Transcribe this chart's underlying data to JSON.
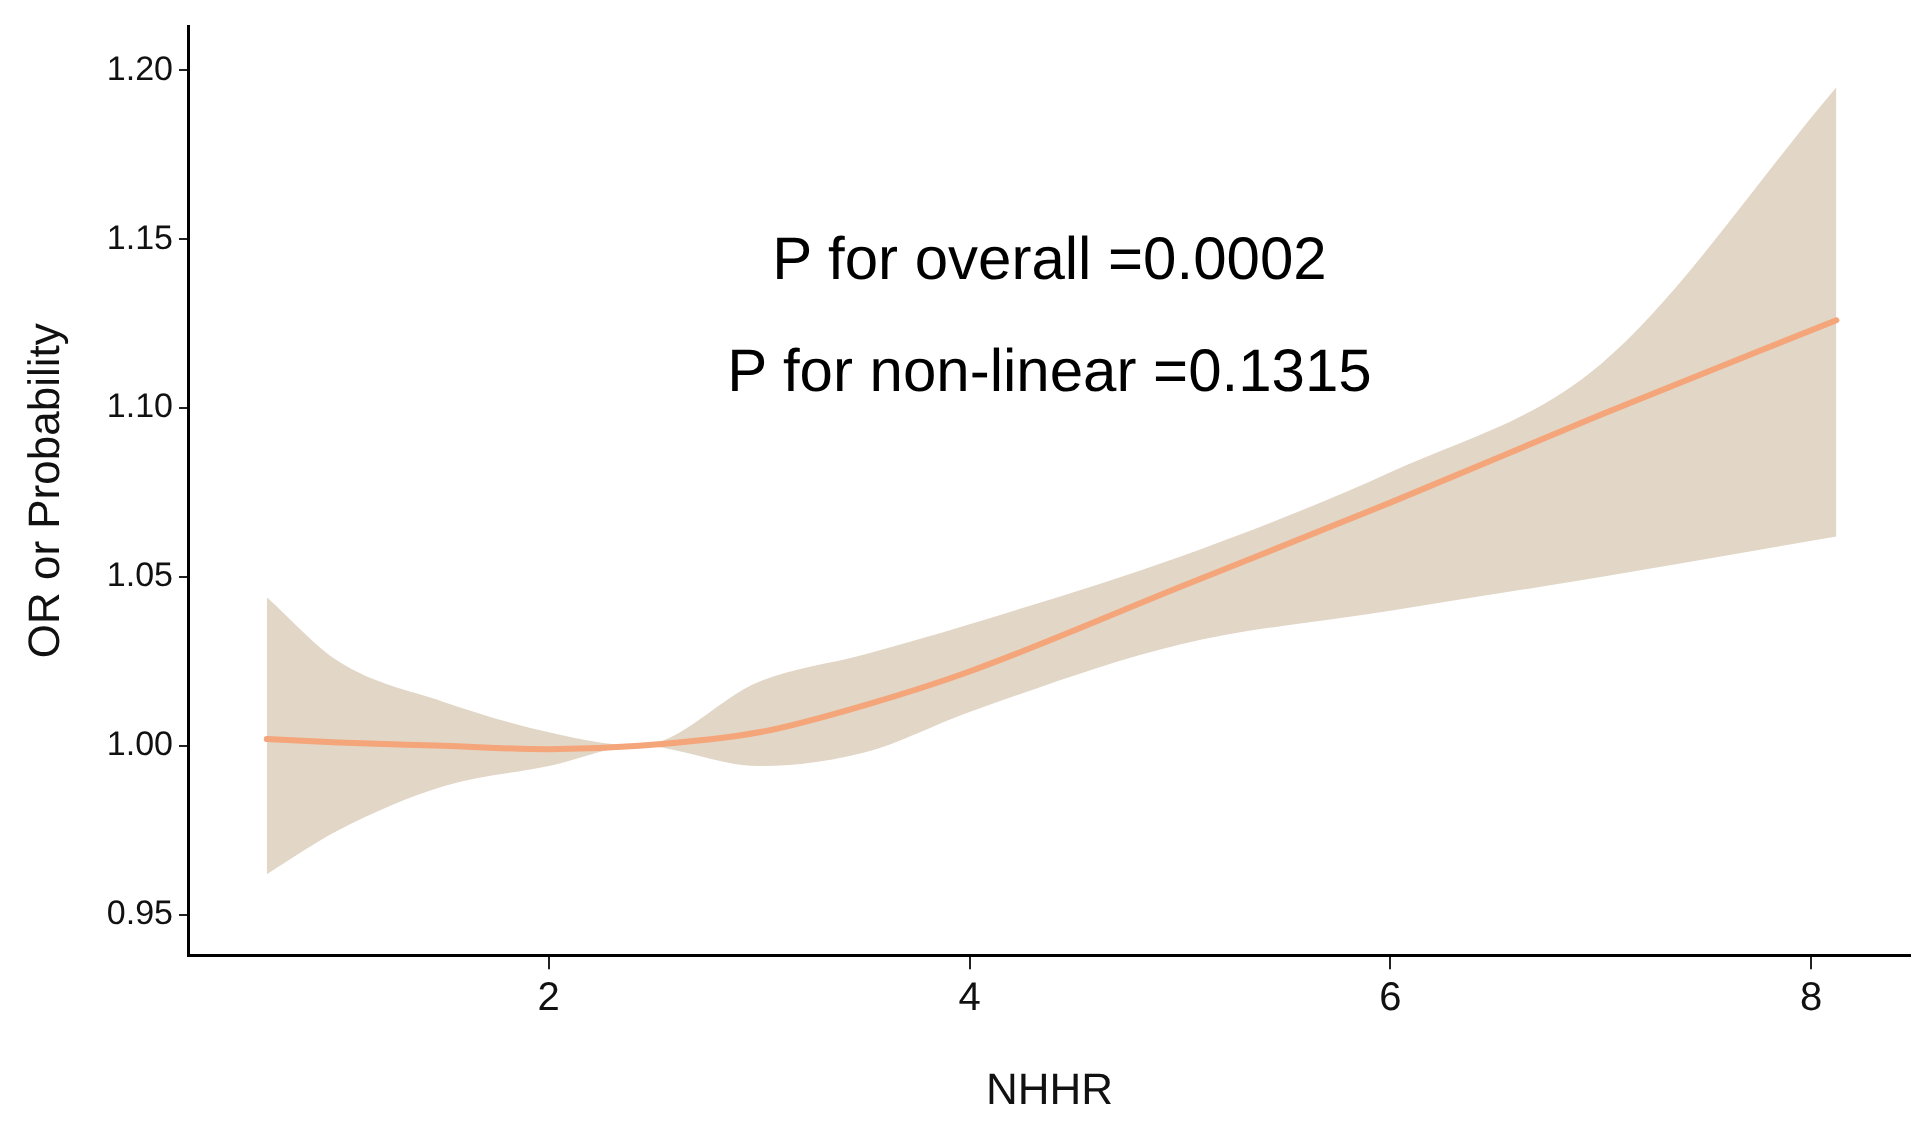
{
  "chart_data": {
    "type": "line",
    "xlabel": "NHHR",
    "ylabel": "OR or Probability",
    "annotations": [
      "P for overall =0.0002",
      "P for non-linear =0.1315"
    ],
    "x": [
      0.66,
      1.0,
      1.5,
      2.0,
      2.43,
      3.0,
      3.5,
      4.0,
      5.0,
      6.0,
      7.0,
      8.12
    ],
    "series": [
      {
        "color": "#f4a57a",
        "values": [
          1.002,
          1.001,
          1.0,
          0.999,
          1.0,
          1.004,
          1.012,
          1.022,
          1.047,
          1.072,
          1.098,
          1.126
        ],
        "lower": [
          0.962,
          0.975,
          0.988,
          0.994,
          1.0,
          0.994,
          0.998,
          1.01,
          1.03,
          1.04,
          1.05,
          1.062
        ],
        "upper": [
          1.044,
          1.025,
          1.013,
          1.004,
          1.0,
          1.019,
          1.027,
          1.036,
          1.056,
          1.081,
          1.113,
          1.195
        ]
      }
    ],
    "xlim": [
      0.29,
      8.47
    ],
    "xticks": [
      2,
      4,
      6,
      8
    ],
    "ylim": [
      0.938,
      1.213
    ],
    "yticks": [
      {
        "value": 0.95,
        "label": "0.95"
      },
      {
        "value": 1.0,
        "label": "1.00"
      },
      {
        "value": 1.05,
        "label": "1.05"
      },
      {
        "value": 1.1,
        "label": "1.10"
      },
      {
        "value": 1.15,
        "label": "1.15"
      },
      {
        "value": 1.2,
        "label": "1.20"
      }
    ],
    "grid": false,
    "legend": false,
    "marker": "none",
    "line_style": "solid"
  }
}
